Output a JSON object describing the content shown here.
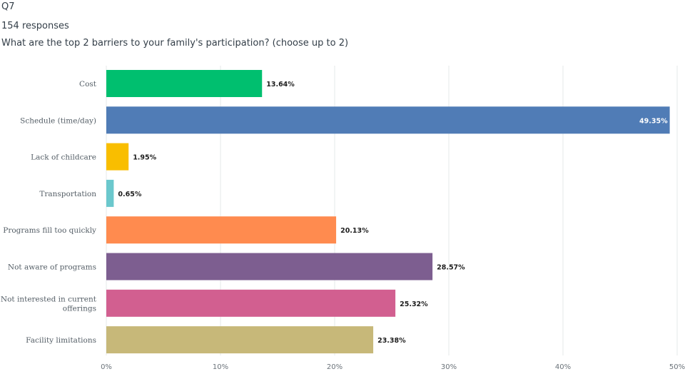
{
  "question": {
    "id": "Q7",
    "responses": "154 responses",
    "text": "What are the top 2 barriers to your family's participation? (choose up to 2)"
  },
  "chart_data": {
    "type": "bar",
    "orientation": "horizontal",
    "categories": [
      [
        "Cost"
      ],
      [
        "Schedule (time/day)"
      ],
      [
        "Lack of childcare"
      ],
      [
        "Transportation"
      ],
      [
        "Programs fill too quickly"
      ],
      [
        "Not aware of programs"
      ],
      [
        "Not interested in current",
        "offerings"
      ],
      [
        "Facility limitations"
      ]
    ],
    "values": [
      13.64,
      49.35,
      1.95,
      0.65,
      20.13,
      28.57,
      25.32,
      23.38
    ],
    "value_labels": [
      "13.64%",
      "49.35%",
      "1.95%",
      "0.65%",
      "20.13%",
      "28.57%",
      "25.32%",
      "23.38%"
    ],
    "colors": [
      "#00bf6f",
      "#507cb6",
      "#f9be00",
      "#6bc8cd",
      "#ff8b4f",
      "#7d5e90",
      "#d25f90",
      "#c7b879"
    ],
    "xlim": [
      0,
      50
    ],
    "ticks": [
      0,
      10,
      20,
      30,
      40,
      50
    ],
    "tick_labels": [
      "0%",
      "10%",
      "20%",
      "30%",
      "40%",
      "50%"
    ],
    "grid": true
  }
}
